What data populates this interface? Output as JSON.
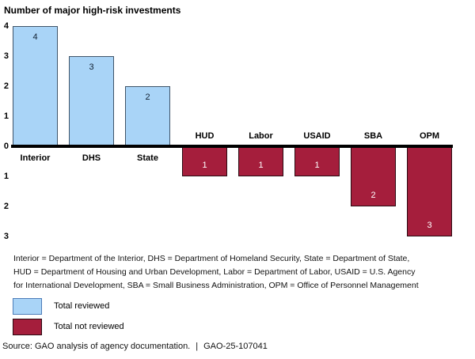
{
  "chart_data": {
    "type": "bar",
    "title": "Number of major high-risk investments",
    "categories": [
      "Interior",
      "DHS",
      "State",
      "HUD",
      "Labor",
      "USAID",
      "SBA",
      "OPM"
    ],
    "bars": [
      {
        "category": "Interior",
        "series": "Total reviewed",
        "value": 4,
        "label": "4"
      },
      {
        "category": "DHS",
        "series": "Total reviewed",
        "value": 3,
        "label": "3"
      },
      {
        "category": "State",
        "series": "Total reviewed",
        "value": 2,
        "label": "2"
      },
      {
        "category": "HUD",
        "series": "Total not reviewed",
        "value": -1,
        "label": "1"
      },
      {
        "category": "Labor",
        "series": "Total not reviewed",
        "value": -1,
        "label": "1"
      },
      {
        "category": "USAID",
        "series": "Total not reviewed",
        "value": -1,
        "label": "1"
      },
      {
        "category": "SBA",
        "series": "Total not reviewed",
        "value": -2,
        "label": "2"
      },
      {
        "category": "OPM",
        "series": "Total not reviewed",
        "value": -3,
        "label": "3"
      }
    ],
    "series_colors": {
      "Total reviewed": {
        "fill": "#A9D4F7",
        "border": "#3F5469",
        "text": "#101F30"
      },
      "Total not reviewed": {
        "fill": "#A51E3C",
        "border": "#2A0A12",
        "text": "#FFFFFF"
      }
    },
    "ylim": [
      -3,
      4
    ],
    "yticks": [
      4,
      3,
      2,
      1,
      0,
      -1,
      -2,
      -3
    ],
    "ytick_labels": [
      "4",
      "3",
      "2",
      "1",
      "0",
      "1",
      "2",
      "3"
    ],
    "grid": false,
    "legend_position": "bottom-left",
    "note": "Bars below the axis are plotted downward; labels show absolute counts"
  },
  "legend": {
    "items": [
      {
        "label": "Total reviewed",
        "color": "#A9D4F7",
        "border": "#4D7DB8"
      },
      {
        "label": "Total not reviewed",
        "color": "#A51E3C",
        "border": "#2A0A12"
      }
    ]
  },
  "footnote": {
    "lines": [
      "Interior = Department of the Interior, DHS = Department of Homeland Security, State = Department of State,",
      "HUD = Department of Housing and Urban Development, Labor = Department of Labor, USAID = U.S. Agency",
      "for International Development, SBA = Small Business Administration, OPM = Office of Personnel Management"
    ]
  },
  "source": {
    "text": "Source: GAO analysis of agency documentation.",
    "separator": "|",
    "report_number": "GAO-25-107041"
  }
}
